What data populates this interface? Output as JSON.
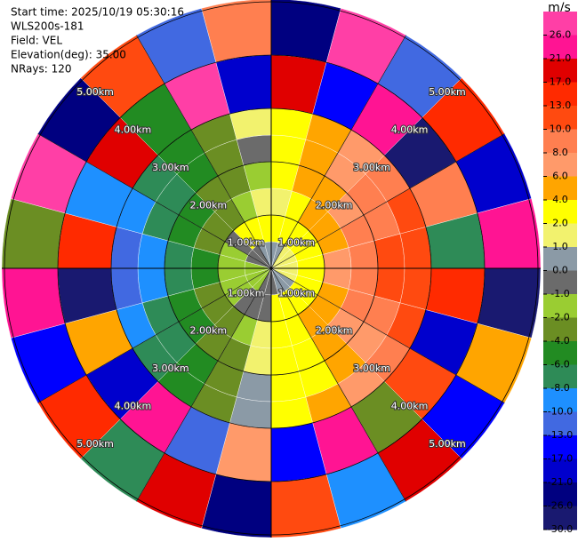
{
  "chart_data": {
    "type": "ppi",
    "info": [
      "Start time: 2025/10/19 05:30:16",
      "WLS200s-181",
      "Field: VEL",
      "Elevation(deg): 35.00",
      "NRays: 120"
    ],
    "rlim": [
      0,
      5.05
    ],
    "rings": [
      {
        "value": 1,
        "label": "1.00km"
      },
      {
        "value": 2,
        "label": "2.00km"
      },
      {
        "value": 3,
        "label": "3.00km"
      },
      {
        "value": 4,
        "label": "4.00km"
      },
      {
        "value": 5,
        "label": "5.00km"
      }
    ],
    "azimuths": [
      7.5,
      22.5,
      37.5,
      52.5,
      67.5,
      82.5,
      97.5,
      112.5,
      127.5,
      142.5,
      157.5,
      172.5,
      187.5,
      202.5,
      217.5,
      232.5,
      247.5,
      262.5,
      277.5,
      292.5,
      307.5,
      322.5,
      337.5,
      352.5
    ],
    "range_edges": [
      0,
      0.5,
      1,
      1.5,
      2,
      2.5,
      3,
      4,
      5.05
    ],
    "values": [
      [
        0.5,
        2.5,
        1.5,
        2,
        2,
        3,
        18,
        -24
      ],
      [
        0.8,
        3,
        3,
        4,
        4,
        5,
        -15,
        27
      ],
      [
        1,
        3,
        4,
        5,
        6,
        7,
        22,
        -11
      ],
      [
        1,
        3,
        5,
        7,
        8,
        9,
        -27,
        14
      ],
      [
        1.2,
        3.5,
        5.5,
        8,
        9,
        11,
        9,
        -19
      ],
      [
        1.2,
        3.5,
        6,
        8.5,
        10,
        12,
        -8,
        24
      ],
      [
        1.2,
        3.5,
        6,
        8.5,
        10,
        12,
        16,
        -29
      ],
      [
        1,
        3,
        5.5,
        8,
        9,
        11,
        -21,
        5
      ],
      [
        0.8,
        3,
        5,
        7,
        7,
        9,
        12,
        -14
      ],
      [
        0.5,
        2.5,
        4,
        5,
        5,
        7,
        -3,
        20
      ],
      [
        0.3,
        2.5,
        3,
        3.5,
        3,
        5,
        25,
        -9
      ],
      [
        -0.5,
        2,
        2.5,
        2.5,
        3,
        3,
        -17,
        11
      ],
      [
        -0.5,
        -0.5,
        1.5,
        1.5,
        0.5,
        0.5,
        7,
        -26
      ],
      [
        -1,
        -0.5,
        -1.5,
        -2.5,
        -3,
        -3,
        -12,
        18
      ],
      [
        -1.5,
        -0.5,
        -3,
        -3.5,
        -4.5,
        -5,
        23,
        -7
      ],
      [
        -1.5,
        -1.5,
        -3.5,
        -5,
        -6.5,
        -7,
        -20,
        13
      ],
      [
        -1.5,
        -1.5,
        -4,
        -6,
        -7,
        -9,
        4,
        -16
      ],
      [
        -1.5,
        -1.5,
        -4.5,
        -6.5,
        -8.5,
        -11,
        -28,
        21
      ],
      [
        -1.5,
        -1.5,
        -4.5,
        -6.5,
        -8.5,
        -11,
        15,
        -4
      ],
      [
        -1,
        -1.5,
        -4,
        -6,
        -7,
        -9,
        -10,
        26
      ],
      [
        -1,
        -1,
        -3.5,
        -5,
        -6.5,
        -7,
        19,
        -22
      ],
      [
        -0.5,
        2,
        -3,
        -3.5,
        -4.5,
        -5,
        -6,
        10
      ],
      [
        0.5,
        2.5,
        -1.5,
        -2.5,
        -3,
        -3,
        28,
        -13
      ],
      [
        0.5,
        2.5,
        1.5,
        -1.5,
        -0.5,
        1,
        -18,
        8
      ]
    ],
    "colorbar": {
      "unit": "m/s",
      "ticks": [
        {
          "value": 26,
          "label": "26.0"
        },
        {
          "value": 21,
          "label": "21.0"
        },
        {
          "value": 17,
          "label": "17.0"
        },
        {
          "value": 13,
          "label": "13.0"
        },
        {
          "value": 10,
          "label": "10.0"
        },
        {
          "value": 8,
          "label": "8.0"
        },
        {
          "value": 6,
          "label": "6.0"
        },
        {
          "value": 4,
          "label": "4.0"
        },
        {
          "value": 2,
          "label": "2.0"
        },
        {
          "value": 1,
          "label": "1.0"
        },
        {
          "value": 0,
          "label": "0.0"
        },
        {
          "value": -1,
          "label": "-1.0"
        },
        {
          "value": -2,
          "label": "-2.0"
        },
        {
          "value": -4,
          "label": "-4.0"
        },
        {
          "value": -6,
          "label": "-6.0"
        },
        {
          "value": -8,
          "label": "-8.0"
        },
        {
          "value": -10,
          "label": "-10.0"
        },
        {
          "value": -13,
          "label": "-13.0"
        },
        {
          "value": -17,
          "label": "-17.0"
        },
        {
          "value": -21,
          "label": "-21.0"
        },
        {
          "value": -26,
          "label": "-26.0"
        },
        {
          "value": -30,
          "label": "-30.0"
        }
      ],
      "colors": [
        "#ff3fa6",
        "#ff1493",
        "#e00000",
        "#ff2a00",
        "#ff4a10",
        "#ff7f50",
        "#ff9a6a",
        "#ffa500",
        "#ffff00",
        "#f2f26e",
        "#8b9aa6",
        "#6b6b6b",
        "#9acd32",
        "#6b8e23",
        "#228b22",
        "#2e8b57",
        "#1e90ff",
        "#4169e1",
        "#0000ff",
        "#0000cd",
        "#000080",
        "#191970"
      ]
    }
  }
}
